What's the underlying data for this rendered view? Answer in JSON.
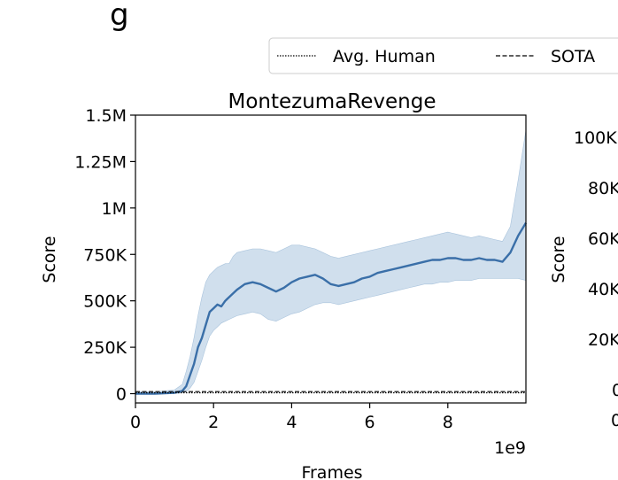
{
  "header_fragment": "g",
  "legend": {
    "entries": [
      {
        "label": "Avg. Human",
        "style": "dotted"
      },
      {
        "label": "SOTA",
        "style": "dashed"
      }
    ]
  },
  "chart_data": [
    {
      "type": "line",
      "title": "MontezumaRevenge",
      "xlabel": "Frames",
      "ylabel": "Score",
      "x_offset_text": "1e9",
      "xlim": [
        0,
        1.0
      ],
      "ylim": [
        -50000,
        1500000
      ],
      "x_ticks": [
        0,
        0.2,
        0.4,
        0.6,
        0.8
      ],
      "x_tick_labels": [
        "0",
        "2",
        "4",
        "6",
        "8"
      ],
      "y_ticks": [
        0,
        250000,
        500000,
        750000,
        1000000,
        1250000,
        1500000
      ],
      "y_tick_labels": [
        "0",
        "250K",
        "500K",
        "750K",
        "1M",
        "1.25M",
        "1.5M"
      ],
      "grid": false,
      "colors": {
        "mean": "#3a6fa8",
        "band": "#c8d9ea",
        "reference": "#000000"
      },
      "reference_lines": [
        {
          "name": "Avg. Human",
          "y": 4753,
          "style": "dotted"
        },
        {
          "name": "SOTA",
          "y": 11000,
          "style": "dashed"
        }
      ],
      "series": [
        {
          "x": [
            0,
            0.05,
            0.1,
            0.12,
            0.13,
            0.14,
            0.15,
            0.16,
            0.17,
            0.18,
            0.19,
            0.2,
            0.21,
            0.22,
            0.23,
            0.24,
            0.25,
            0.26,
            0.28,
            0.3,
            0.32,
            0.34,
            0.36,
            0.38,
            0.4,
            0.42,
            0.44,
            0.46,
            0.48,
            0.5,
            0.52,
            0.54,
            0.56,
            0.58,
            0.6,
            0.62,
            0.64,
            0.66,
            0.68,
            0.7,
            0.72,
            0.74,
            0.76,
            0.78,
            0.8,
            0.82,
            0.84,
            0.86,
            0.88,
            0.9,
            0.92,
            0.94,
            0.96,
            0.98,
            1.0
          ],
          "values": [
            0,
            0,
            5000,
            15000,
            40000,
            100000,
            160000,
            250000,
            300000,
            370000,
            440000,
            460000,
            480000,
            470000,
            500000,
            520000,
            540000,
            560000,
            590000,
            600000,
            590000,
            570000,
            550000,
            570000,
            600000,
            620000,
            630000,
            640000,
            620000,
            590000,
            580000,
            590000,
            600000,
            620000,
            630000,
            650000,
            660000,
            670000,
            680000,
            690000,
            700000,
            710000,
            720000,
            720000,
            730000,
            730000,
            720000,
            720000,
            730000,
            720000,
            720000,
            710000,
            760000,
            850000,
            920000
          ],
          "band_upper": [
            10000,
            10000,
            20000,
            50000,
            120000,
            200000,
            300000,
            420000,
            520000,
            600000,
            640000,
            660000,
            680000,
            690000,
            700000,
            700000,
            740000,
            760000,
            770000,
            780000,
            780000,
            770000,
            760000,
            780000,
            800000,
            800000,
            790000,
            780000,
            760000,
            740000,
            730000,
            740000,
            750000,
            760000,
            770000,
            780000,
            790000,
            800000,
            810000,
            820000,
            830000,
            840000,
            850000,
            860000,
            870000,
            860000,
            850000,
            840000,
            850000,
            840000,
            830000,
            820000,
            900000,
            1150000,
            1420000
          ],
          "band_lower": [
            0,
            0,
            0,
            5000,
            10000,
            30000,
            60000,
            120000,
            180000,
            250000,
            310000,
            340000,
            360000,
            380000,
            390000,
            400000,
            410000,
            420000,
            430000,
            440000,
            430000,
            400000,
            390000,
            410000,
            430000,
            440000,
            460000,
            480000,
            490000,
            490000,
            480000,
            490000,
            500000,
            510000,
            520000,
            530000,
            540000,
            550000,
            560000,
            570000,
            580000,
            590000,
            590000,
            600000,
            600000,
            610000,
            610000,
            610000,
            620000,
            620000,
            620000,
            620000,
            620000,
            620000,
            610000
          ]
        }
      ]
    },
    {
      "type": "line",
      "title": "",
      "xlabel": "",
      "ylabel": "Score",
      "y_tick_labels_partial": [
        "100K",
        "80K",
        "60K",
        "40K",
        "20K",
        "0"
      ],
      "x_tick_labels_partial": [
        "0"
      ],
      "series": []
    }
  ]
}
